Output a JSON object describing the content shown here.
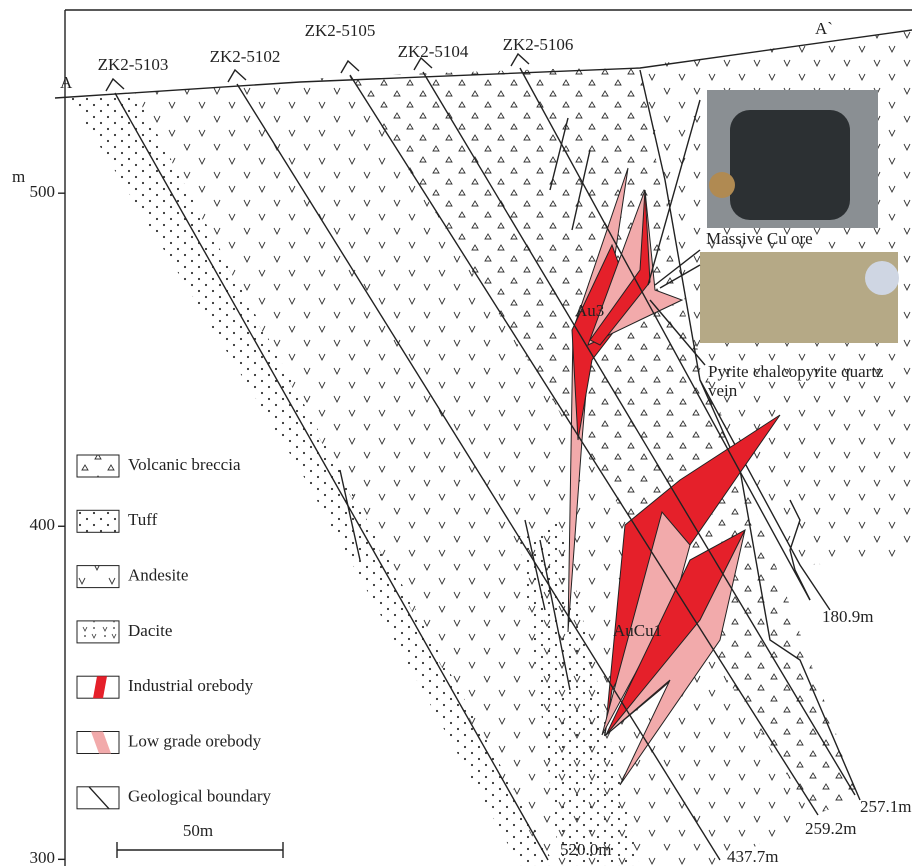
{
  "section": {
    "start": "A",
    "end": "A`"
  },
  "elevation_axis": {
    "unit": "m",
    "ylim": [
      558,
      298
    ],
    "ticks": [
      500,
      400,
      300
    ]
  },
  "drill_holes": [
    {
      "id": "ZK2-5103",
      "depth": "520.0m"
    },
    {
      "id": "ZK2-5102",
      "depth": "437.7m"
    },
    {
      "id": "ZK2-5105",
      "depth": "259.2m"
    },
    {
      "id": "ZK2-5104",
      "depth": "257.1m"
    },
    {
      "id": "ZK2-5106",
      "depth": "180.9m"
    }
  ],
  "orebodies": [
    "Au3",
    "AuCu1"
  ],
  "photos": [
    "Massive Cu ore",
    "Pyrite chalcopyrite quartz vein"
  ],
  "legend": [
    "Volcanic breccia",
    "Tuff",
    "Andesite",
    "Dacite",
    "Industrial orebody",
    "Low grade orebody",
    "Geological boundary"
  ],
  "scale_bar": "50m"
}
